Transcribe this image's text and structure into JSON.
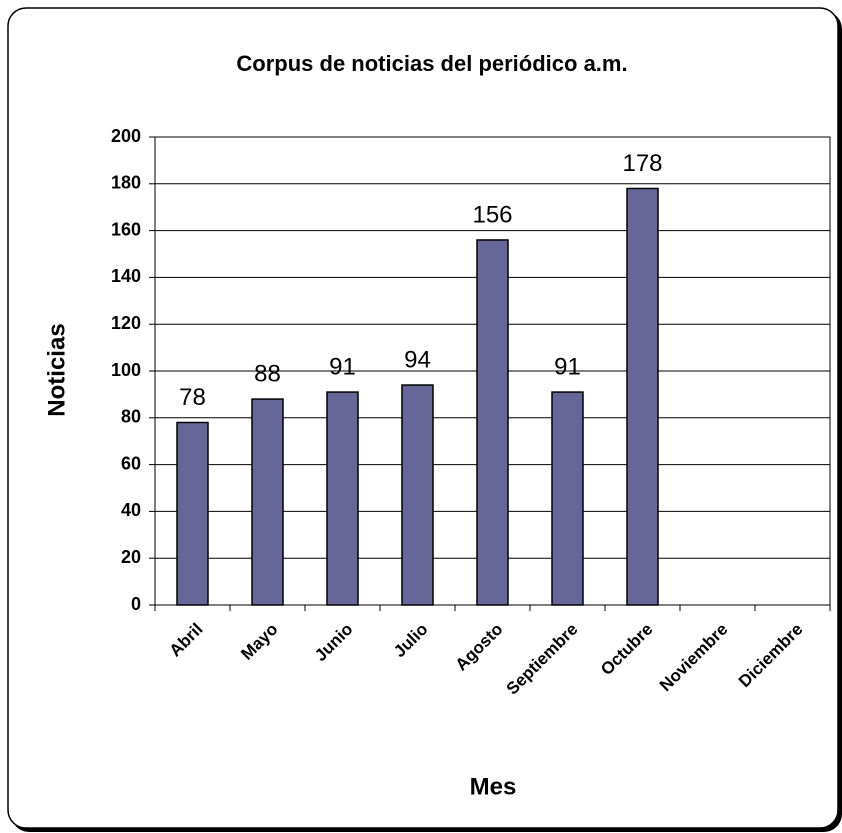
{
  "chart_data": {
    "type": "bar",
    "title": "Corpus de noticias del periódico a.m.",
    "x_label": "Mes",
    "y_label": "Noticias",
    "categories": [
      "Abril",
      "Mayo",
      "Junio",
      "Julio",
      "Agosto",
      "Septiembre",
      "Octubre",
      "Noviembre",
      "Diciembre"
    ],
    "values": [
      78,
      88,
      91,
      94,
      156,
      91,
      178,
      null,
      null
    ],
    "color": "#666699",
    "ylim": [
      0,
      200
    ],
    "yticks": [
      0,
      20,
      40,
      60,
      80,
      100,
      120,
      140,
      160,
      180,
      200
    ],
    "grid": true
  }
}
